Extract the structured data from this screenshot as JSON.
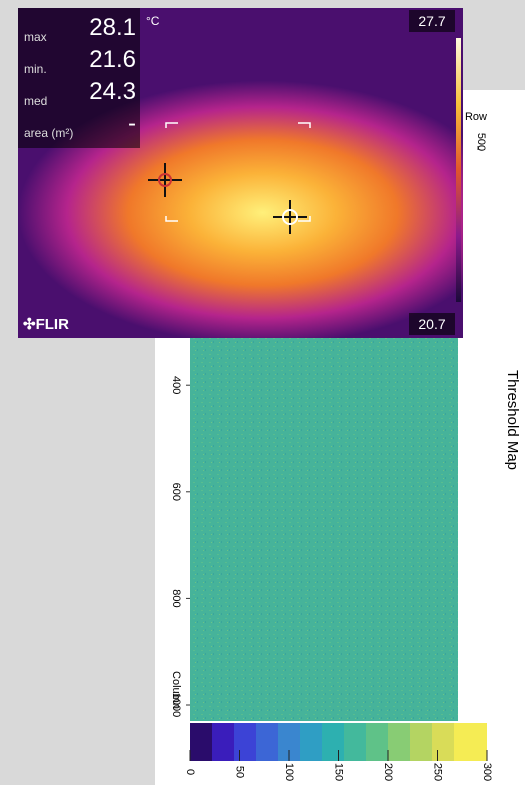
{
  "thermal": {
    "readings": [
      {
        "label": "max",
        "value": 28.1
      },
      {
        "label": "min.",
        "value": 21.6
      },
      {
        "label": "med",
        "value": 24.3
      },
      {
        "label": "area (m²)",
        "value": "-"
      }
    ],
    "unit": "°C",
    "scale_max": 27.7,
    "scale_min": 20.7,
    "brand": "FLIR"
  },
  "threshold_map": {
    "title": "Threshold Map",
    "row_label": "Row",
    "row_ticks": [
      500
    ],
    "column_label": "Column",
    "column_lim": [
      0,
      1030
    ],
    "column_ticks": [
      400,
      600,
      800,
      1000
    ],
    "colorbar_lim": [
      0,
      300
    ],
    "colorbar_ticks": [
      0,
      50,
      100,
      150,
      200,
      250,
      300
    ]
  }
}
